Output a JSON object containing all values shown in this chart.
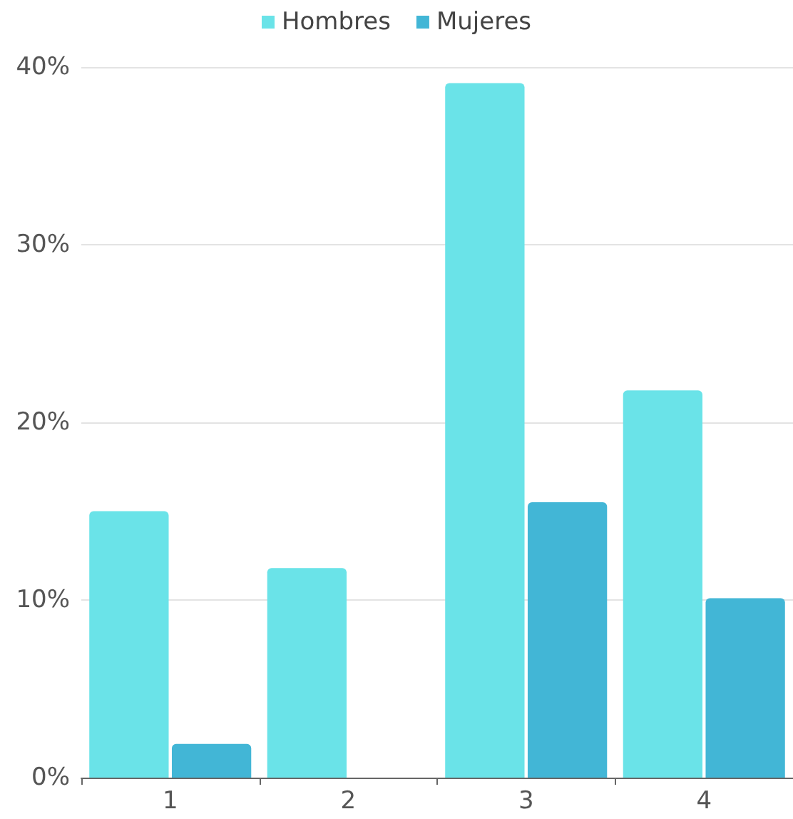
{
  "chart_data": {
    "type": "bar",
    "categories": [
      "1",
      "2",
      "3",
      "4"
    ],
    "series": [
      {
        "name": "Hombres",
        "color": "#6ae3e8",
        "values": [
          15,
          11.8,
          39.1,
          21.8
        ]
      },
      {
        "name": "Mujeres",
        "color": "#42b6d6",
        "values": [
          1.9,
          0,
          15.5,
          10.1
        ]
      }
    ],
    "ylim": [
      0,
      40
    ],
    "yticks": [
      {
        "value": 0,
        "label": "0%"
      },
      {
        "value": 10,
        "label": "10%"
      },
      {
        "value": 20,
        "label": "20%"
      },
      {
        "value": 30,
        "label": "30%"
      },
      {
        "value": 40,
        "label": "40%"
      }
    ],
    "grid": "y",
    "legend": "top"
  }
}
